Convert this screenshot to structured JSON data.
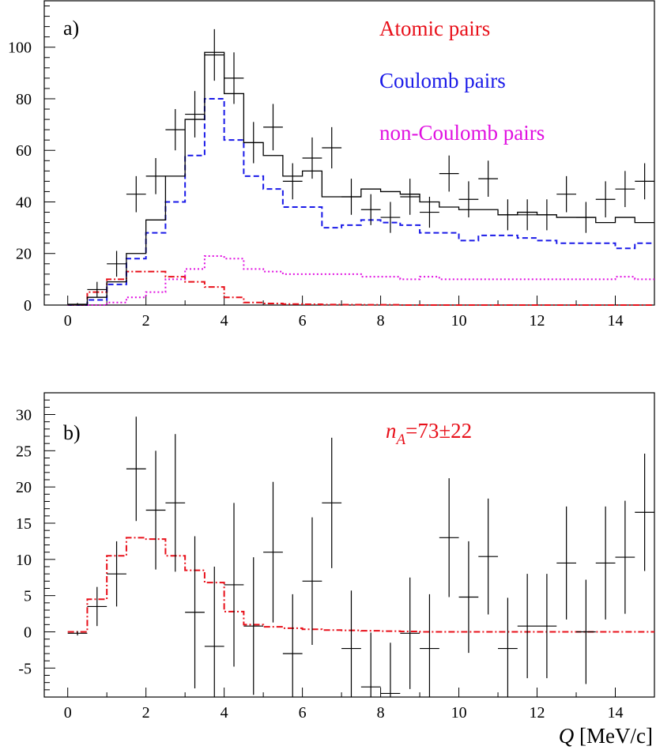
{
  "chart_data": [
    {
      "type": "line",
      "panel_label": "a)",
      "xlim": [
        -0.6,
        15
      ],
      "ylim": [
        0,
        118
      ],
      "x_ticks": [
        0,
        2,
        4,
        6,
        8,
        10,
        12,
        14
      ],
      "y_ticks": [
        0,
        20,
        40,
        60,
        80,
        100
      ],
      "legend": [
        {
          "text": "Atomic pairs",
          "color": "#e8101a"
        },
        {
          "text": "Coulomb pairs",
          "color": "#1a1ae8"
        },
        {
          "text": "non-Coulomb pairs",
          "color": "#e010e0"
        }
      ],
      "data_points": {
        "x": [
          0.25,
          0.75,
          1.25,
          1.75,
          2.25,
          2.75,
          3.25,
          3.75,
          4.25,
          4.75,
          5.25,
          5.75,
          6.25,
          6.75,
          7.25,
          7.75,
          8.25,
          8.75,
          9.25,
          9.75,
          10.25,
          10.75,
          11.25,
          11.75,
          12.25,
          12.75,
          13.25,
          13.75,
          14.25,
          14.75
        ],
        "y": [
          0.3,
          6,
          16,
          43,
          50,
          68,
          74,
          97,
          88,
          63,
          69,
          48,
          57,
          61,
          42,
          37,
          34,
          42,
          36,
          51,
          41,
          49,
          35,
          35,
          35,
          43,
          34,
          41,
          45,
          48
        ],
        "yerr": [
          0.5,
          3,
          5,
          7,
          7,
          8,
          9,
          10,
          10,
          8,
          9,
          7,
          8,
          8,
          7,
          6,
          6,
          7,
          6,
          7,
          7,
          7,
          6,
          6,
          6,
          7,
          6,
          7,
          7,
          7
        ]
      },
      "series": [
        {
          "name": "Atomic pairs",
          "color": "#e8101a",
          "style": "dashdot",
          "edges": [
            0,
            0.5,
            1,
            1.5,
            2,
            2.5,
            3,
            3.5,
            4,
            4.5,
            5,
            5.5,
            6,
            6.5,
            7,
            7.5,
            8,
            8.5,
            9,
            9.5,
            10,
            10.5,
            11,
            11.5,
            12,
            12.5,
            13,
            13.5,
            14,
            14.5,
            15
          ],
          "values": [
            0,
            5,
            10,
            13,
            13,
            11,
            9,
            7,
            3,
            1,
            0.6,
            0.4,
            0.3,
            0.2,
            0.15,
            0.1,
            0.1,
            0,
            0,
            0,
            0,
            0,
            0,
            0,
            0,
            0,
            0,
            0,
            0,
            0
          ]
        },
        {
          "name": "Coulomb pairs",
          "color": "#1a1ae8",
          "style": "dashed",
          "edges": [
            0,
            0.5,
            1,
            1.5,
            2,
            2.5,
            3,
            3.5,
            4,
            4.5,
            5,
            5.5,
            6,
            6.5,
            7,
            7.5,
            8,
            8.5,
            9,
            9.5,
            10,
            10.5,
            11,
            11.5,
            12,
            12.5,
            13,
            13.5,
            14,
            14.5,
            15
          ],
          "values": [
            0,
            2,
            8,
            18,
            28,
            40,
            58,
            80,
            64,
            50,
            45,
            38,
            38,
            30,
            31,
            33,
            32,
            31,
            28,
            28,
            25,
            27,
            27,
            26,
            25,
            24,
            24,
            24,
            22,
            24
          ]
        },
        {
          "name": "non-Coulomb pairs",
          "color": "#e010e0",
          "style": "dotted",
          "edges": [
            0,
            0.5,
            1,
            1.5,
            2,
            2.5,
            3,
            3.5,
            4,
            4.5,
            5,
            5.5,
            6,
            6.5,
            7,
            7.5,
            8,
            8.5,
            9,
            9.5,
            10,
            10.5,
            11,
            11.5,
            12,
            12.5,
            13,
            13.5,
            14,
            14.5,
            15
          ],
          "values": [
            0,
            0,
            1,
            3,
            5,
            10,
            14,
            19,
            18,
            14,
            13,
            12,
            12,
            12,
            12,
            11,
            11,
            10,
            11,
            10,
            10,
            10,
            10,
            10,
            10,
            10,
            10,
            10,
            11,
            10
          ]
        },
        {
          "name": "",
          "color": "#000000",
          "style": "solid",
          "edges": [
            0,
            0.5,
            1,
            1.5,
            2,
            2.5,
            3,
            3.5,
            4,
            4.5,
            5,
            5.5,
            6,
            6.5,
            7,
            7.5,
            8,
            8.5,
            9,
            9.5,
            10,
            10.5,
            11,
            11.5,
            12,
            12.5,
            13,
            13.5,
            14,
            14.5,
            15
          ],
          "values": [
            0,
            3,
            9,
            20,
            33,
            50,
            72,
            98,
            82,
            63,
            58,
            50,
            52,
            42,
            42,
            45,
            44,
            43,
            40,
            38,
            37,
            37,
            35,
            36,
            35,
            34,
            34,
            32,
            34,
            32
          ]
        }
      ]
    },
    {
      "type": "line",
      "panel_label": "b)",
      "xlim": [
        -0.6,
        15
      ],
      "ylim": [
        -9,
        33
      ],
      "x_ticks": [
        0,
        2,
        4,
        6,
        8,
        10,
        12,
        14
      ],
      "y_ticks": [
        -5,
        0,
        5,
        10,
        15,
        20,
        25,
        30
      ],
      "x_tick_labels": [
        "0",
        "2",
        "4",
        "6",
        "8",
        "10",
        "12",
        "14"
      ],
      "y_tick_labels": [
        "-5",
        "0",
        "5",
        "10",
        "15",
        "20",
        "25",
        "30"
      ],
      "annotation": {
        "italic": "n",
        "sub": "A",
        "rest": "=73±22"
      },
      "xlabel": {
        "italic": "Q",
        "rest": " [MeV/c]"
      },
      "data_points": {
        "x": [
          0.25,
          0.75,
          1.25,
          1.75,
          2.25,
          2.75,
          3.25,
          3.75,
          4.25,
          4.75,
          5.25,
          5.75,
          6.25,
          6.75,
          7.25,
          7.75,
          8.25,
          8.75,
          9.25,
          9.75,
          10.25,
          10.75,
          11.25,
          11.75,
          12.25,
          12.75,
          13.25,
          13.75,
          14.25,
          14.75
        ],
        "y": [
          -0.2,
          3.5,
          8,
          22.5,
          16.8,
          17.8,
          2.7,
          -2,
          6.5,
          0.8,
          11,
          -3,
          7,
          17.8,
          -2.3,
          -7.6,
          -8.5,
          -0.2,
          -2.3,
          13,
          4.8,
          10.4,
          -2.3,
          0.8,
          0.8,
          9.5,
          0,
          9.5,
          10.3,
          16.5
        ],
        "yerr": [
          0.3,
          2.7,
          4.5,
          7.2,
          8.2,
          9.5,
          10.5,
          11,
          11.3,
          9.5,
          9.7,
          8.2,
          8.8,
          9,
          8,
          7.5,
          7,
          7.7,
          7.5,
          8.2,
          7.7,
          8,
          7,
          7.2,
          7.2,
          7.8,
          7.2,
          7.8,
          7.8,
          8.1
        ]
      },
      "series": [
        {
          "name": "",
          "color": "#e8101a",
          "style": "dashdot",
          "edges": [
            0,
            0.5,
            1,
            1.5,
            2,
            2.5,
            3,
            3.5,
            4,
            4.5,
            5,
            5.5,
            6,
            6.5,
            7,
            7.5,
            8,
            8.5,
            9,
            9.5,
            10,
            10.5,
            11,
            11.5,
            12,
            12.5,
            13,
            13.5,
            14,
            14.5,
            15
          ],
          "values": [
            0,
            4.5,
            10.5,
            13,
            12.8,
            10.5,
            8.5,
            6.8,
            2.8,
            1,
            0.7,
            0.5,
            0.35,
            0.25,
            0.2,
            0.15,
            0.1,
            0.05,
            0,
            0,
            0,
            0,
            0,
            0,
            0,
            0,
            0,
            0,
            0,
            0
          ]
        }
      ]
    }
  ]
}
